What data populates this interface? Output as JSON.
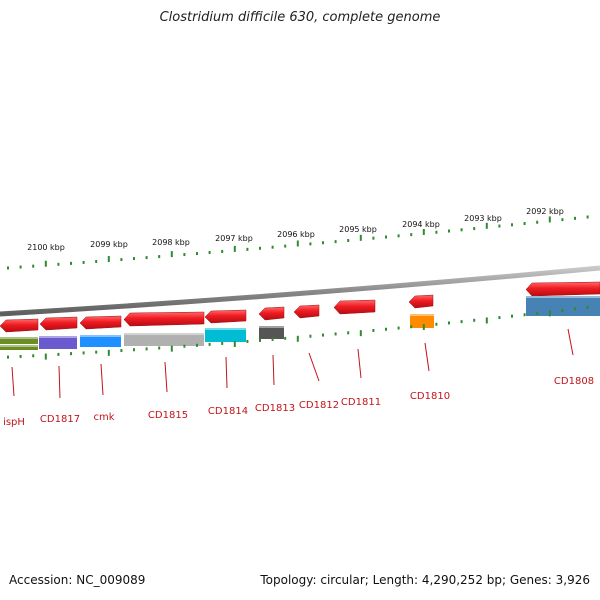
{
  "title": "Clostridium difficile 630, complete genome",
  "footer": {
    "accession": "Accession: NC_009089",
    "summary": "Topology: circular; Length: 4,290,252 bp; Genes: 3,926"
  },
  "colors": {
    "gene": "#e8121f",
    "label": "#c0151c",
    "tick": "#2e8b2e",
    "backbone": "#8c8c8c"
  },
  "scale_labels": [
    "2100 kbp",
    "2099 kbp",
    "2098 kbp",
    "2097 kbp",
    "2096 kbp",
    "2095 kbp",
    "2094 kbp",
    "2093 kbp",
    "2092 kbp"
  ],
  "gene_labels": [
    "ispH",
    "CD1817",
    "cmk",
    "CD1815",
    "CD1814",
    "CD1813",
    "CD1812",
    "CD1811",
    "CD1810",
    "CD1808"
  ],
  "cog_colors": [
    "#6b8e23",
    "#6a5acd",
    "#1e90ff",
    "#b0b0b0",
    "#00bcd4",
    "#555555",
    "#ff8c00",
    "#4682b4"
  ]
}
